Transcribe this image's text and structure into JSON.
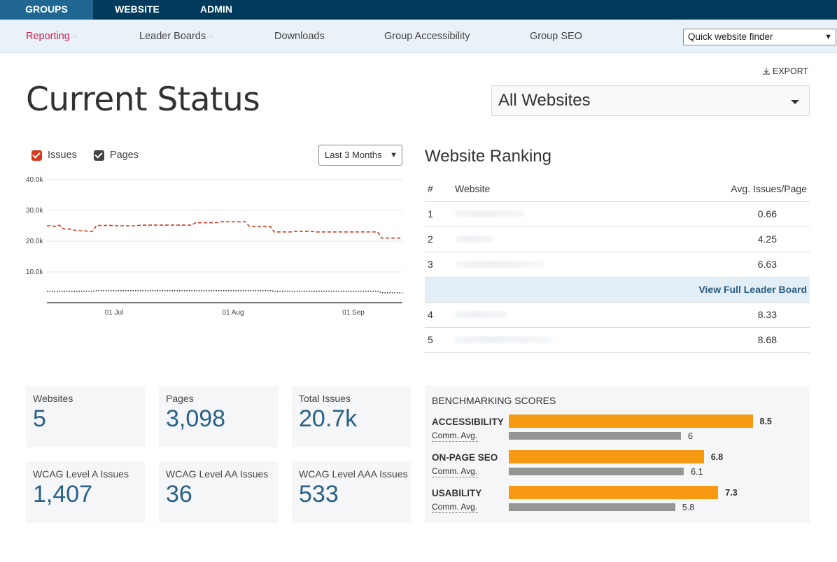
{
  "topnav": {
    "tabs": [
      "GROUPS",
      "WEBSITE",
      "ADMIN"
    ]
  },
  "subnav": {
    "items": [
      "Reporting",
      "Leader Boards",
      "Downloads",
      "Group Accessibility",
      "Group SEO"
    ],
    "finder_placeholder": "Quick website finder"
  },
  "export_label": "EXPORT",
  "page_title": "Current Status",
  "website_select": "All Websites",
  "legend": {
    "issues": "Issues",
    "pages": "Pages"
  },
  "range_select": "Last 3 Months",
  "colors": {
    "issues": "#d13a1e",
    "pages": "#444444",
    "accent": "#f59a12",
    "comm": "#959595"
  },
  "chart_data": {
    "type": "line",
    "ylim": [
      0,
      40000
    ],
    "y_ticks": [
      "40.0k",
      "30.0k",
      "20.0k",
      "10.0k"
    ],
    "x_ticks": [
      "01 Jul",
      "01 Aug",
      "01 Sep"
    ],
    "series": [
      {
        "name": "Issues",
        "style": "dashed",
        "values": [
          25000,
          25000,
          24800,
          25200,
          24000,
          24000,
          23800,
          23500,
          23400,
          23400,
          23200,
          23200,
          25100,
          25100,
          25100,
          25100,
          25100,
          25000,
          25000,
          25000,
          25000,
          25000,
          25100,
          25200,
          25200,
          25200,
          25200,
          25200,
          25200,
          25200,
          25200,
          25200,
          25200,
          25200,
          25200,
          25200,
          26000,
          26000,
          26000,
          26000,
          26000,
          26000,
          26300,
          26300,
          26300,
          26300,
          26300,
          26300,
          26300,
          24800,
          24800,
          24800,
          24800,
          24800,
          24800,
          23000,
          23000,
          23000,
          23000,
          23000,
          23200,
          23200,
          23200,
          23200,
          23200,
          23000,
          23000,
          23000,
          23000,
          23000,
          23000,
          23000,
          23000,
          23000,
          23000,
          23000,
          23000,
          23000,
          23000,
          23000,
          23000,
          21000,
          21000,
          21000,
          21000,
          21000,
          21000
        ]
      },
      {
        "name": "Pages",
        "style": "dotted",
        "values": [
          3700,
          3700,
          3700,
          3700,
          3700,
          3700,
          3700,
          3700,
          3700,
          3700,
          3700,
          3700,
          3900,
          3900,
          3900,
          3900,
          3900,
          3900,
          3900,
          3900,
          3900,
          3900,
          3900,
          3900,
          3900,
          3900,
          3900,
          3900,
          3900,
          3900,
          3900,
          3900,
          3900,
          3900,
          3900,
          3900,
          3900,
          3900,
          3900,
          3900,
          3900,
          3900,
          3900,
          3900,
          3900,
          3900,
          3900,
          3900,
          3900,
          3900,
          3900,
          3900,
          3900,
          3900,
          3900,
          3700,
          3700,
          3700,
          3700,
          3700,
          3700,
          3700,
          3700,
          3700,
          3700,
          3700,
          3700,
          3700,
          3700,
          3700,
          3700,
          3700,
          3700,
          3700,
          3700,
          3700,
          3700,
          3700,
          3700,
          3700,
          3700,
          3200,
          3200,
          3200,
          3200,
          3200,
          3200
        ]
      }
    ]
  },
  "ranking": {
    "title": "Website Ranking",
    "headers": [
      "#",
      "Website",
      "Avg. Issues/Page"
    ],
    "rows_top": [
      {
        "rank": "1",
        "value": "0.66"
      },
      {
        "rank": "2",
        "value": "4.25"
      },
      {
        "rank": "3",
        "value": "6.63"
      }
    ],
    "leader_link": "View Full Leader Board",
    "rows_bottom": [
      {
        "rank": "4",
        "value": "8.33"
      },
      {
        "rank": "5",
        "value": "8.68"
      }
    ]
  },
  "stats": [
    {
      "label": "Websites",
      "value": "5"
    },
    {
      "label": "Pages",
      "value": "3,098"
    },
    {
      "label": "Total Issues",
      "value": "20.7k"
    },
    {
      "label": "WCAG Level A Issues",
      "value": "1,407"
    },
    {
      "label": "WCAG Level AA Issues",
      "value": "36"
    },
    {
      "label": "WCAG Level AAA Issues",
      "value": "533"
    }
  ],
  "benchmarking": {
    "title": "BENCHMARKING SCORES",
    "comm_label": "Comm. Avg.",
    "max_score": 10,
    "categories": [
      {
        "name": "ACCESSIBILITY",
        "score": 8.5,
        "score_label": "8.5",
        "comm": 6,
        "comm_label": "6"
      },
      {
        "name": "ON-PAGE SEO",
        "score": 6.8,
        "score_label": "6.8",
        "comm": 6.1,
        "comm_label": "6.1"
      },
      {
        "name": "USABILITY",
        "score": 7.3,
        "score_label": "7.3",
        "comm": 5.8,
        "comm_label": "5.8"
      }
    ]
  }
}
